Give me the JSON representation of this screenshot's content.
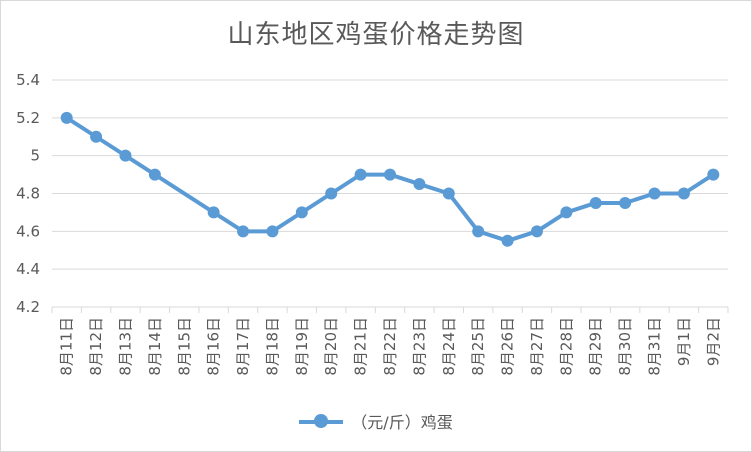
{
  "chart_data": {
    "type": "line",
    "title": "山东地区鸡蛋价格走势图",
    "categories": [
      "8月11日",
      "8月12日",
      "8月13日",
      "8月14日",
      "8月15日",
      "8月16日",
      "8月17日",
      "8月18日",
      "8月19日",
      "8月20日",
      "8月21日",
      "8月22日",
      "8月23日",
      "8月24日",
      "8月25日",
      "8月26日",
      "8月27日",
      "8月28日",
      "8月29日",
      "8月30日",
      "8月31日",
      "9月1日",
      "9月2日"
    ],
    "series": [
      {
        "name": "（元/斤）鸡蛋",
        "values": [
          5.2,
          5.1,
          5.0,
          4.9,
          null,
          4.7,
          4.6,
          4.6,
          4.7,
          4.8,
          4.9,
          4.9,
          4.85,
          4.8,
          4.6,
          4.55,
          4.6,
          4.7,
          4.75,
          4.75,
          4.8,
          4.8,
          4.9
        ]
      }
    ],
    "yticks": [
      "4.2",
      "4.4",
      "4.6",
      "4.8",
      "5",
      "5.2",
      "5.4"
    ],
    "ylim": [
      4.2,
      5.4
    ],
    "grid": true,
    "legend": "bottom",
    "color": "#5b9bd5"
  }
}
